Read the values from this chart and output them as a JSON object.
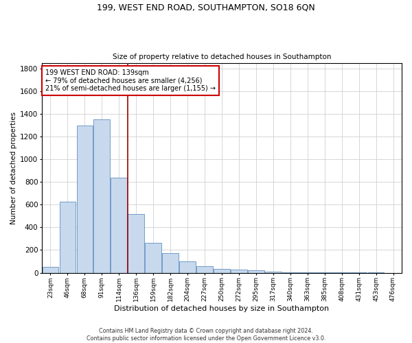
{
  "title1": "199, WEST END ROAD, SOUTHAMPTON, SO18 6QN",
  "title2": "Size of property relative to detached houses in Southampton",
  "xlabel": "Distribution of detached houses by size in Southampton",
  "ylabel": "Number of detached properties",
  "bar_color": "#c8d9ee",
  "bar_edge_color": "#6090c0",
  "vline_color": "#990000",
  "annotation_text": "199 WEST END ROAD: 139sqm\n← 79% of detached houses are smaller (4,256)\n21% of semi-detached houses are larger (1,155) →",
  "annotation_box_color": "#cc0000",
  "categories": [
    "23sqm",
    "46sqm",
    "68sqm",
    "91sqm",
    "114sqm",
    "136sqm",
    "159sqm",
    "182sqm",
    "204sqm",
    "227sqm",
    "250sqm",
    "272sqm",
    "295sqm",
    "317sqm",
    "340sqm",
    "363sqm",
    "385sqm",
    "408sqm",
    "431sqm",
    "453sqm",
    "476sqm"
  ],
  "values": [
    50,
    625,
    1300,
    1350,
    840,
    520,
    265,
    170,
    100,
    57,
    35,
    30,
    20,
    8,
    4,
    3,
    2,
    1,
    1,
    1,
    0
  ],
  "ylim": [
    0,
    1850
  ],
  "yticks": [
    0,
    200,
    400,
    600,
    800,
    1000,
    1200,
    1400,
    1600,
    1800
  ],
  "footnote1": "Contains HM Land Registry data © Crown copyright and database right 2024.",
  "footnote2": "Contains public sector information licensed under the Open Government Licence v3.0.",
  "bg_color": "#ffffff",
  "grid_color": "#d0d0d0"
}
